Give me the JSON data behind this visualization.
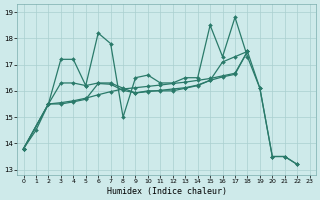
{
  "xlabel": "Humidex (Indice chaleur)",
  "background_color": "#ceeaea",
  "grid_color": "#aacfcf",
  "line_color": "#2a7a6a",
  "xlim": [
    -0.5,
    23.5
  ],
  "ylim": [
    12.8,
    19.3
  ],
  "yticks": [
    13,
    14,
    15,
    16,
    17,
    18,
    19
  ],
  "xticks": [
    0,
    1,
    2,
    3,
    4,
    5,
    6,
    7,
    8,
    9,
    10,
    11,
    12,
    13,
    14,
    15,
    16,
    17,
    18,
    19,
    20,
    21,
    22,
    23
  ],
  "line1_x": [
    0,
    1,
    2,
    3,
    4,
    5,
    6,
    7,
    8,
    9,
    10,
    11,
    12,
    13,
    14,
    15,
    16,
    17,
    18,
    19,
    20,
    21,
    22
  ],
  "line1_y": [
    13.8,
    14.5,
    15.5,
    17.2,
    17.2,
    16.2,
    18.2,
    17.8,
    15.0,
    16.5,
    16.6,
    16.3,
    16.3,
    16.5,
    16.5,
    18.5,
    17.3,
    18.8,
    17.3,
    16.1,
    13.5,
    13.5,
    13.2
  ],
  "line2_x": [
    0,
    2,
    3,
    4,
    5,
    6,
    7,
    8,
    9,
    10,
    11,
    12,
    13,
    14,
    15,
    16,
    17,
    18
  ],
  "line2_y": [
    13.8,
    15.5,
    15.55,
    15.62,
    15.72,
    15.85,
    15.97,
    16.07,
    16.12,
    16.17,
    16.22,
    16.28,
    16.33,
    16.4,
    16.47,
    16.57,
    16.67,
    17.5
  ],
  "line3_x": [
    0,
    2,
    3,
    4,
    5,
    6,
    7,
    8,
    9,
    10,
    11,
    12,
    13,
    14,
    15,
    16,
    17,
    18
  ],
  "line3_y": [
    13.8,
    15.5,
    15.5,
    15.58,
    15.68,
    16.28,
    16.25,
    16.02,
    15.92,
    15.97,
    16.02,
    16.07,
    16.12,
    16.22,
    16.4,
    16.53,
    16.63,
    17.5
  ],
  "line4_x": [
    0,
    2,
    3,
    4,
    5,
    6,
    7,
    8,
    9,
    10,
    11,
    12,
    13,
    14,
    15,
    16,
    17,
    18,
    19,
    20,
    21,
    22
  ],
  "line4_y": [
    13.8,
    15.5,
    16.3,
    16.3,
    16.2,
    16.3,
    16.3,
    16.1,
    15.92,
    16.0,
    16.0,
    16.0,
    16.1,
    16.2,
    16.4,
    17.1,
    17.3,
    17.5,
    16.1,
    13.5,
    13.5,
    13.2
  ]
}
